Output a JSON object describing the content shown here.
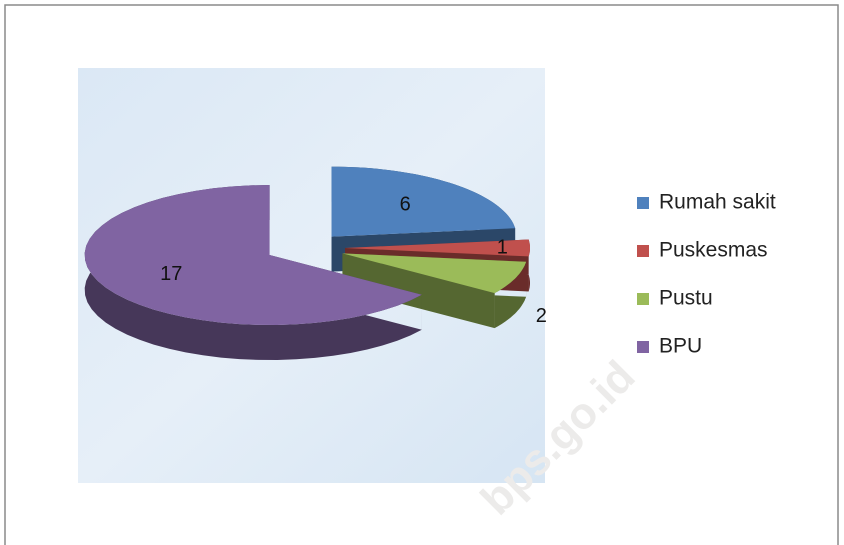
{
  "chart_data": {
    "type": "pie",
    "categories": [
      "Rumah sakit",
      "Puskesmas",
      "Pustu",
      "BPU"
    ],
    "values": [
      6,
      1,
      2,
      17
    ],
    "colors": [
      "#4f81bd",
      "#c0504d",
      "#9bbb59",
      "#8064a2"
    ],
    "legend": "right",
    "watermark": "bps.go.id"
  }
}
